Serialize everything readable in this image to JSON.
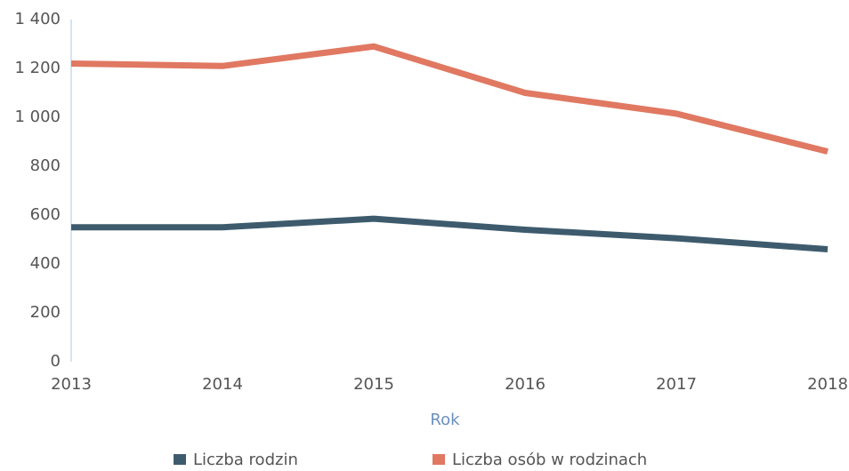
{
  "chart_data": {
    "type": "line",
    "categories": [
      "2013",
      "2014",
      "2015",
      "2016",
      "2017",
      "2018"
    ],
    "x_label": "Rok",
    "series": [
      {
        "name": "Liczba rodzin",
        "color": "#3e5b6d",
        "values": [
          550,
          550,
          585,
          540,
          505,
          460
        ]
      },
      {
        "name": "Liczba osób w rodzinach",
        "color": "#e07862",
        "values": [
          1220,
          1210,
          1290,
          1100,
          1015,
          860
        ]
      }
    ],
    "ylim": [
      0,
      1400
    ],
    "yticks": [
      0,
      200,
      400,
      600,
      800,
      {
        "value": 1000,
        "label": "1 000"
      },
      {
        "value": 1200,
        "label": "1 200"
      },
      {
        "value": 1400,
        "label": "1 400"
      }
    ],
    "grid": false,
    "legend": "bottom"
  }
}
